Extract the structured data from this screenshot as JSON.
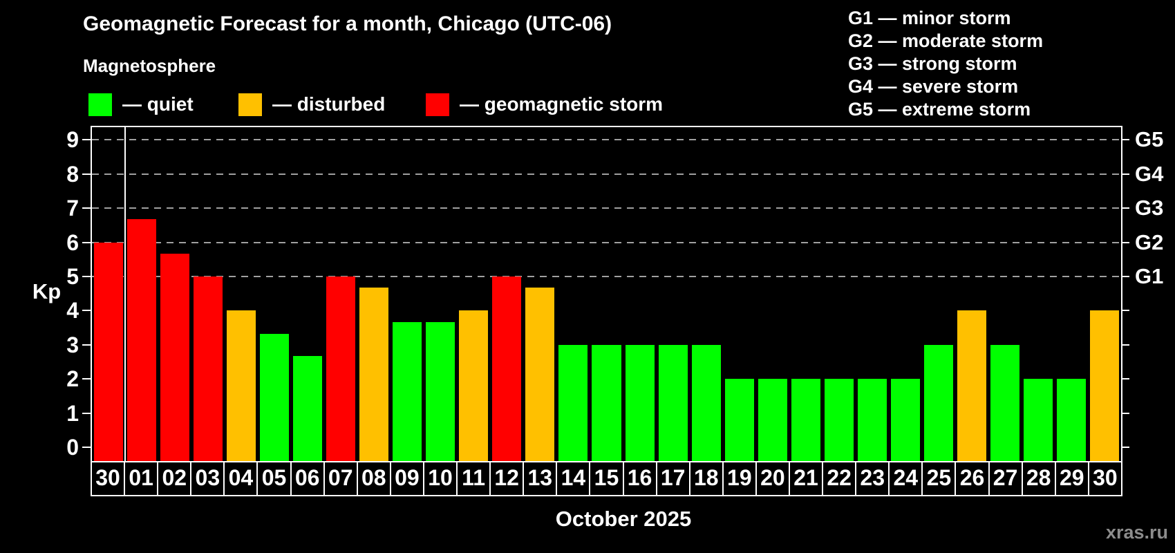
{
  "header": {
    "title": "Geomagnetic Forecast for a month, Chicago (UTC-06)",
    "subtitle": "Magnetosphere"
  },
  "legend": {
    "items": [
      {
        "key": "quiet",
        "label": "— quiet",
        "color": "#00FF00"
      },
      {
        "key": "disturbed",
        "label": "— disturbed",
        "color": "#FFC000"
      },
      {
        "key": "storm",
        "label": "— geomagnetic storm",
        "color": "#FF0000"
      }
    ]
  },
  "g_scale_legend": {
    "lines": [
      "G1 — minor storm",
      "G2 — moderate storm",
      "G3 — strong storm",
      "G4 — severe storm",
      "G5 — extreme storm"
    ]
  },
  "axes": {
    "y_title": "Kp",
    "y_ticks": [
      "0",
      "1",
      "2",
      "3",
      "4",
      "5",
      "6",
      "7",
      "8",
      "9"
    ],
    "right_g_labels": [
      {
        "text": "G1",
        "kp": 5
      },
      {
        "text": "G2",
        "kp": 6
      },
      {
        "text": "G3",
        "kp": 7
      },
      {
        "text": "G4",
        "kp": 8
      },
      {
        "text": "G5",
        "kp": 9
      }
    ],
    "x_label": "October 2025"
  },
  "watermark": "xras.ru",
  "chart_data": {
    "type": "bar",
    "title": "Geomagnetic Forecast for a month, Chicago (UTC-06)",
    "subtitle": "Magnetosphere",
    "xlabel": "October 2025",
    "ylabel": "Kp",
    "ylim": [
      -0.4,
      9.4
    ],
    "grid": "dashed horizontal lines at Kp 5,6,7,8,9 (G1–G5)",
    "legend_position": "top-left states, top-right G scale",
    "categories": [
      "30",
      "01",
      "02",
      "03",
      "04",
      "05",
      "06",
      "07",
      "08",
      "09",
      "10",
      "11",
      "12",
      "13",
      "14",
      "15",
      "16",
      "17",
      "18",
      "19",
      "20",
      "21",
      "22",
      "23",
      "24",
      "25",
      "26",
      "27",
      "28",
      "29",
      "30"
    ],
    "values": [
      6,
      6.67,
      5.67,
      5,
      4,
      3.33,
      2.67,
      5,
      4.67,
      3.67,
      3.67,
      4,
      5,
      4.67,
      3,
      3,
      3,
      3,
      3,
      2,
      2,
      2,
      2,
      2,
      2,
      3,
      4,
      3,
      2,
      2,
      4
    ],
    "states": [
      "storm",
      "storm",
      "storm",
      "storm",
      "disturbed",
      "quiet",
      "quiet",
      "storm",
      "disturbed",
      "quiet",
      "quiet",
      "disturbed",
      "storm",
      "disturbed",
      "quiet",
      "quiet",
      "quiet",
      "quiet",
      "quiet",
      "quiet",
      "quiet",
      "quiet",
      "quiet",
      "quiet",
      "quiet",
      "quiet",
      "disturbed",
      "quiet",
      "quiet",
      "quiet",
      "disturbed"
    ],
    "state_colors": {
      "quiet": "#00FF00",
      "disturbed": "#FFC000",
      "storm": "#FF0000"
    },
    "month_separator_after_index": 0
  }
}
